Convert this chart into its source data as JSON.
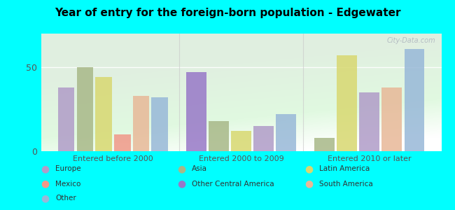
{
  "title": "Year of entry for the foreign-born population - Edgewater",
  "groups": [
    "Entered before 2000",
    "Entered 2000 to 2009",
    "Entered 2010 or later"
  ],
  "series_per_group": {
    "0": [
      {
        "name": "Europe",
        "value": 38,
        "color": "#b09cc8"
      },
      {
        "name": "Asia",
        "value": 50,
        "color": "#a8b888"
      },
      {
        "name": "Latin America",
        "value": 44,
        "color": "#d8d870"
      },
      {
        "name": "Mexico",
        "value": 10,
        "color": "#f09888"
      },
      {
        "name": "South America",
        "value": 33,
        "color": "#e8b898"
      },
      {
        "name": "Other",
        "value": 32,
        "color": "#98b8d8"
      }
    ],
    "1": [
      {
        "name": "Other Central America",
        "value": 47,
        "color": "#9878c8"
      },
      {
        "name": "Asia",
        "value": 18,
        "color": "#a8b888"
      },
      {
        "name": "Latin America",
        "value": 12,
        "color": "#d8d870"
      },
      {
        "name": "Europe",
        "value": 15,
        "color": "#b09cc8"
      },
      {
        "name": "Other",
        "value": 22,
        "color": "#98b8d8"
      }
    ],
    "2": [
      {
        "name": "Asia",
        "value": 8,
        "color": "#a8b888"
      },
      {
        "name": "Latin America",
        "value": 57,
        "color": "#d8d870"
      },
      {
        "name": "Europe",
        "value": 35,
        "color": "#b09cc8"
      },
      {
        "name": "South America",
        "value": 38,
        "color": "#e8b898"
      },
      {
        "name": "Other",
        "value": 61,
        "color": "#98b8d8"
      }
    ]
  },
  "legend_items": [
    {
      "name": "Europe",
      "color": "#b09cc8"
    },
    {
      "name": "Mexico",
      "color": "#f09888"
    },
    {
      "name": "Other",
      "color": "#98b8d8"
    },
    {
      "name": "Asia",
      "color": "#a8b888"
    },
    {
      "name": "Other Central America",
      "color": "#9878c8"
    },
    {
      "name": "Latin America",
      "color": "#d8d870"
    },
    {
      "name": "South America",
      "color": "#e8b898"
    }
  ],
  "ylim": [
    0,
    70
  ],
  "yticks": [
    0,
    50
  ],
  "fig_background": "#00ffff",
  "watermark": "City-Data.com"
}
